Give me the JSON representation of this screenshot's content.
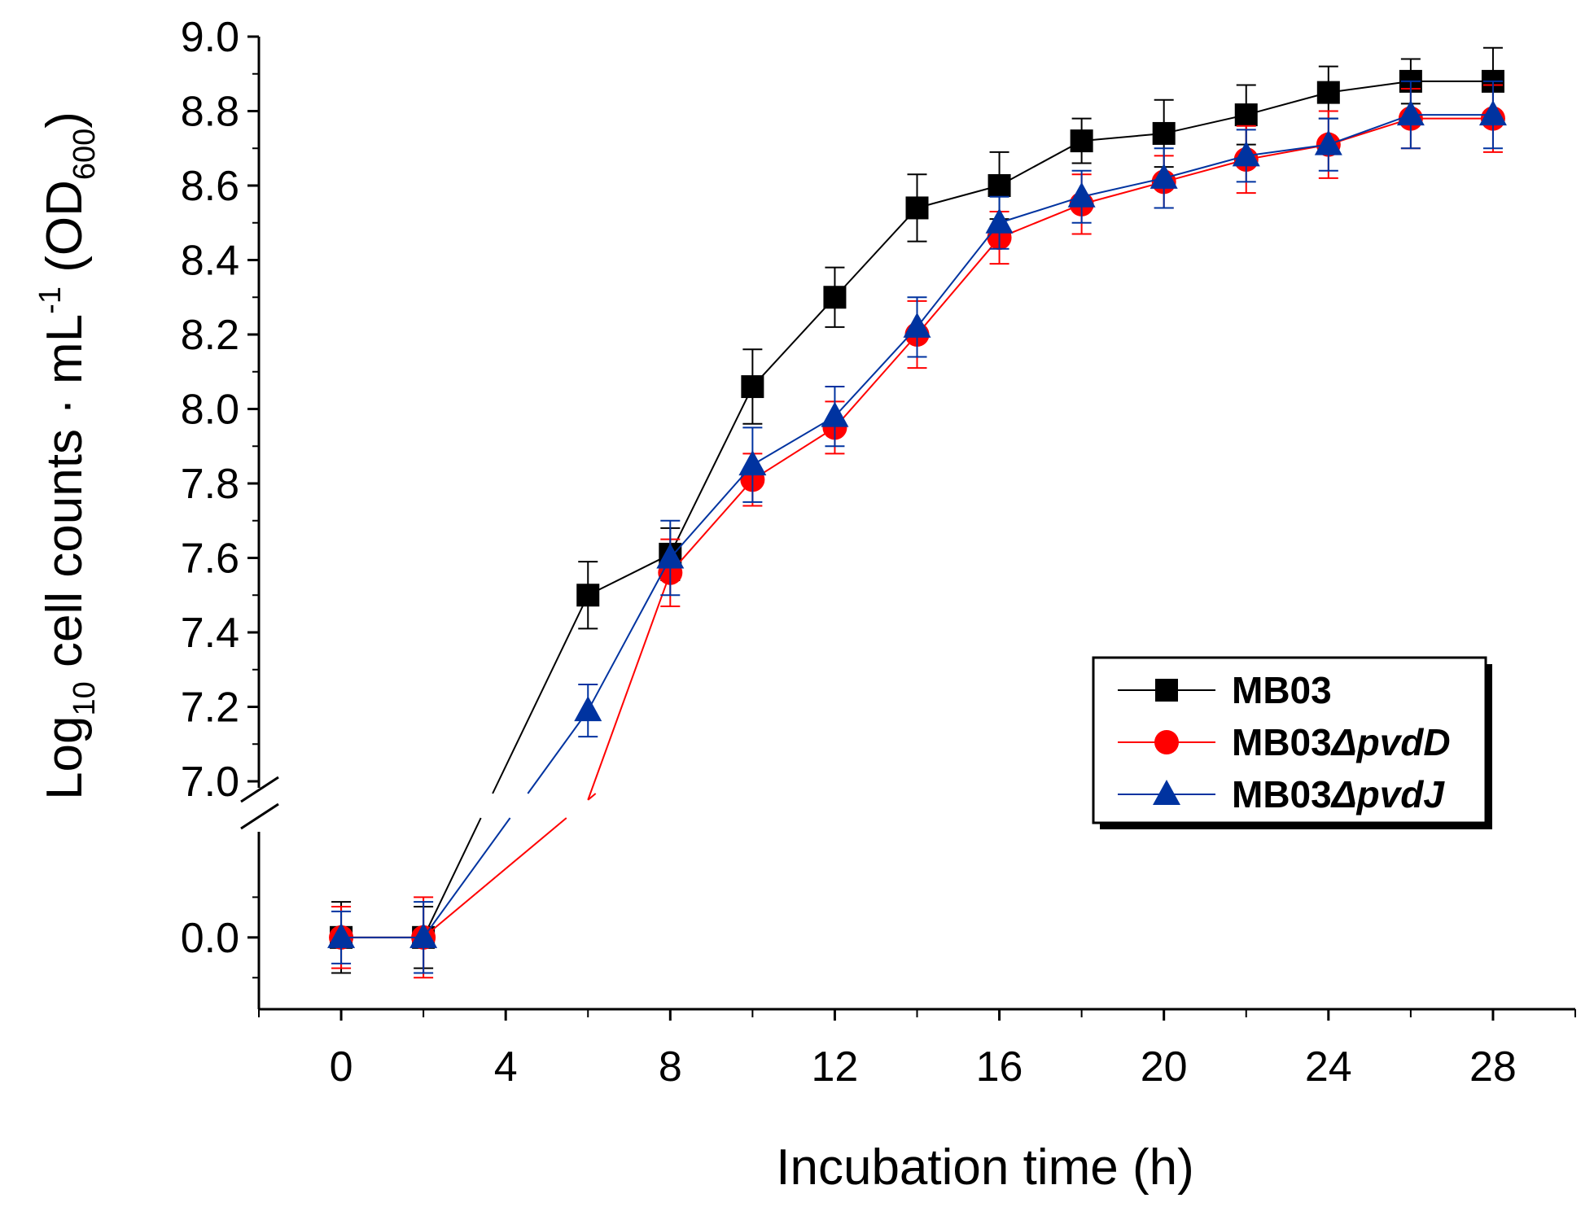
{
  "chart_data": {
    "type": "line",
    "title": "",
    "xlabel": "Incubation time (h)",
    "ylabel": {
      "prefix": "Log",
      "prefix_sub": "10",
      "main": " cell counts · mL",
      "sup": "-1",
      "paren_open": " (OD",
      "paren_sub": "600",
      "paren_close": ")"
    },
    "x": [
      0,
      2,
      6,
      8,
      10,
      12,
      14,
      16,
      18,
      20,
      22,
      24,
      26,
      28
    ],
    "xlim": [
      -2,
      30
    ],
    "xticks": [
      0,
      4,
      8,
      12,
      16,
      20,
      24,
      28
    ],
    "xtick_labels": [
      "0",
      "4",
      "8",
      "12",
      "16",
      "20",
      "24",
      "28"
    ],
    "y_break": true,
    "lower_segment": {
      "ylim": [
        -0.2,
        0.35
      ],
      "ticks": [
        0.0
      ],
      "tick_labels": [
        "0.0"
      ]
    },
    "upper_segment": {
      "ylim": [
        7.0,
        9.0
      ],
      "ticks": [
        7.0,
        7.2,
        7.4,
        7.6,
        7.8,
        8.0,
        8.2,
        8.4,
        8.6,
        8.8,
        9.0
      ],
      "tick_labels": [
        "7.0",
        "7.2",
        "7.4",
        "7.6",
        "7.8",
        "8.0",
        "8.2",
        "8.4",
        "8.6",
        "8.8",
        "9.0"
      ]
    },
    "series": [
      {
        "name": "MB03",
        "italic_part": "",
        "marker": "square",
        "color": "#000000",
        "values": [
          0.0,
          0.0,
          7.5,
          7.61,
          8.06,
          8.3,
          8.54,
          8.6,
          8.72,
          8.74,
          8.79,
          8.85,
          8.88,
          8.88
        ],
        "errors": [
          0.15,
          0.13,
          0.09,
          0.07,
          0.1,
          0.08,
          0.09,
          0.09,
          0.06,
          0.09,
          0.08,
          0.07,
          0.06,
          0.09
        ]
      },
      {
        "name": "MB03",
        "italic_part": "ΔpvdD",
        "marker": "circle",
        "color": "#ff0000",
        "values": [
          0.0,
          0.0,
          6.95,
          7.56,
          7.81,
          7.95,
          8.2,
          8.46,
          8.55,
          8.61,
          8.67,
          8.71,
          8.78,
          8.78
        ],
        "errors": [
          0.13,
          0.17,
          0.0,
          0.09,
          0.07,
          0.07,
          0.09,
          0.07,
          0.08,
          0.07,
          0.09,
          0.09,
          0.08,
          0.09
        ]
      },
      {
        "name": "MB03",
        "italic_part": "ΔpvdJ",
        "marker": "triangle",
        "color": "#0033a0",
        "values": [
          0.0,
          0.0,
          7.19,
          7.6,
          7.85,
          7.98,
          8.22,
          8.5,
          8.57,
          8.62,
          8.68,
          8.71,
          8.79,
          8.79
        ],
        "errors": [
          0.11,
          0.15,
          0.07,
          0.1,
          0.1,
          0.08,
          0.08,
          0.07,
          0.07,
          0.08,
          0.07,
          0.07,
          0.09,
          0.09
        ]
      }
    ],
    "legend": {
      "position": "right, below middle"
    }
  }
}
